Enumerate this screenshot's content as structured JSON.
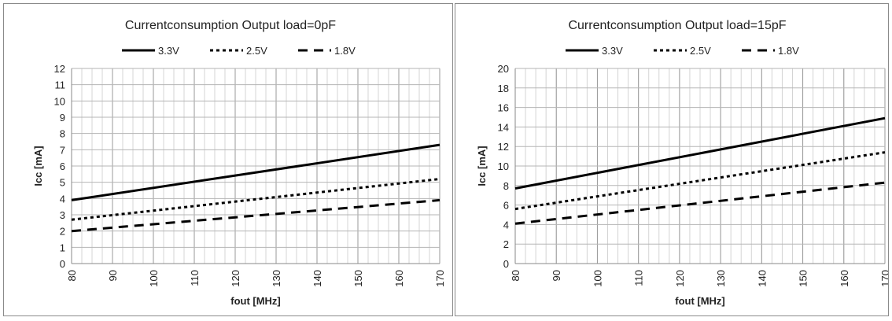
{
  "chart_data": [
    {
      "type": "line",
      "title": "Currentconsumption Output load=0pF",
      "xlabel": "fout [MHz]",
      "ylabel": "Icc [mA]",
      "xlim": [
        80,
        170
      ],
      "ylim": [
        0,
        12
      ],
      "x_ticks": [
        "80",
        "90",
        "100",
        "110",
        "120",
        "130",
        "140",
        "150",
        "160",
        "170"
      ],
      "y_ticks": [
        "0",
        "1",
        "2",
        "3",
        "4",
        "5",
        "6",
        "7",
        "8",
        "9",
        "10",
        "11",
        "12"
      ],
      "grid": true,
      "legend": "top",
      "x": [
        80,
        170
      ],
      "series": [
        {
          "name": "3.3V",
          "style": "solid",
          "values": [
            3.9,
            7.3
          ]
        },
        {
          "name": "2.5V",
          "style": "dotted",
          "values": [
            2.7,
            5.2
          ]
        },
        {
          "name": "1.8V",
          "style": "dashed",
          "values": [
            2.0,
            3.9
          ]
        }
      ]
    },
    {
      "type": "line",
      "title": "Currentconsumption Output load=15pF",
      "xlabel": "fout [MHz]",
      "ylabel": "Icc [mA]",
      "xlim": [
        80,
        170
      ],
      "ylim": [
        0,
        20
      ],
      "x_ticks": [
        "80",
        "90",
        "100",
        "110",
        "120",
        "130",
        "140",
        "150",
        "160",
        "170"
      ],
      "y_ticks": [
        "0",
        "2",
        "4",
        "6",
        "8",
        "10",
        "12",
        "14",
        "16",
        "18",
        "20"
      ],
      "grid": true,
      "legend": "top",
      "x": [
        80,
        170
      ],
      "series": [
        {
          "name": "3.3V",
          "style": "solid",
          "values": [
            7.7,
            14.9
          ]
        },
        {
          "name": "2.5V",
          "style": "dotted",
          "values": [
            5.6,
            11.4
          ]
        },
        {
          "name": "1.8V",
          "style": "dashed",
          "values": [
            4.1,
            8.3
          ]
        }
      ]
    }
  ]
}
